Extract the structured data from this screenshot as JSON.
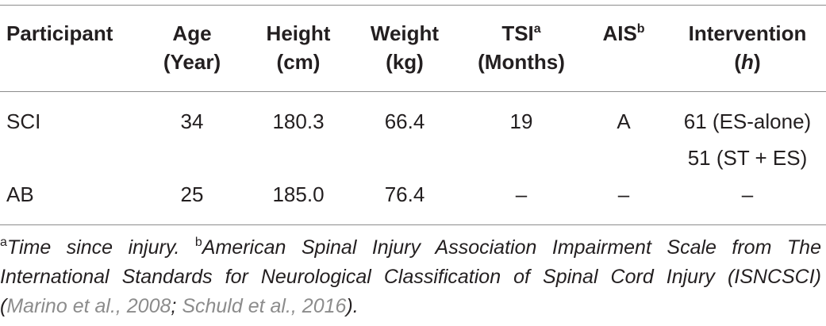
{
  "headers": {
    "participant": "Participant",
    "age_line1": "Age",
    "age_line2": "(Year)",
    "height_line1": "Height",
    "height_line2": "(cm)",
    "weight_line1": "Weight",
    "weight_line2": "(kg)",
    "tsi_line1": "TSI",
    "tsi_sup": "a",
    "tsi_line2": "(Months)",
    "ais": "AIS",
    "ais_sup": "b",
    "intervention_line1": "Intervention",
    "intervention_line2": "h"
  },
  "rows": [
    {
      "participant": "SCI",
      "age": "34",
      "height": "180.3",
      "weight": "66.4",
      "tsi": "19",
      "ais": "A",
      "intervention_1": "61 (ES-alone)",
      "intervention_2": "51 (ST + ES)"
    },
    {
      "participant": "AB",
      "age": "25",
      "height": "185.0",
      "weight": "76.4",
      "tsi": "–",
      "ais": "–",
      "intervention_1": "–"
    }
  ],
  "footnote": {
    "sup_a": "a",
    "text_a": "Time since injury. ",
    "sup_b": "b",
    "text_b": "American Spinal Injury Association Impairment Scale from The International Standards for Neurological Classification of Spinal Cord Injury (ISNCSCI) (",
    "ref1": "Marino et al., 2008",
    "sep": "; ",
    "ref2": "Schuld et al., 2016",
    "end": ")."
  }
}
